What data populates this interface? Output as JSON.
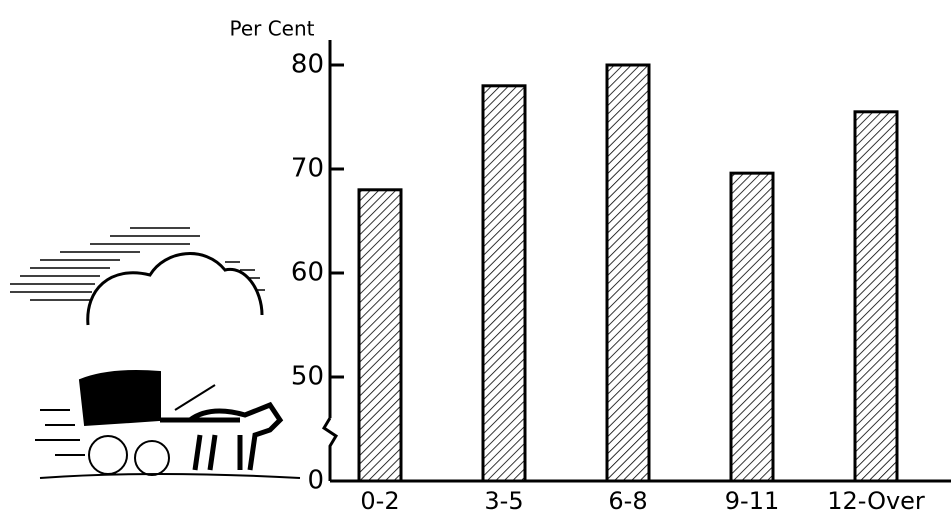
{
  "chart_data": {
    "type": "bar",
    "y_label": "Per Cent",
    "categories": [
      "0-2",
      "3-5",
      "6-8",
      "9-11",
      "12-Over"
    ],
    "values": [
      68,
      78,
      80,
      69.6,
      75.5
    ],
    "ylim": [
      40,
      80
    ],
    "yticks": [
      0,
      50,
      60,
      70,
      80
    ],
    "axis_break": true,
    "hatch": true,
    "color": "#000"
  }
}
